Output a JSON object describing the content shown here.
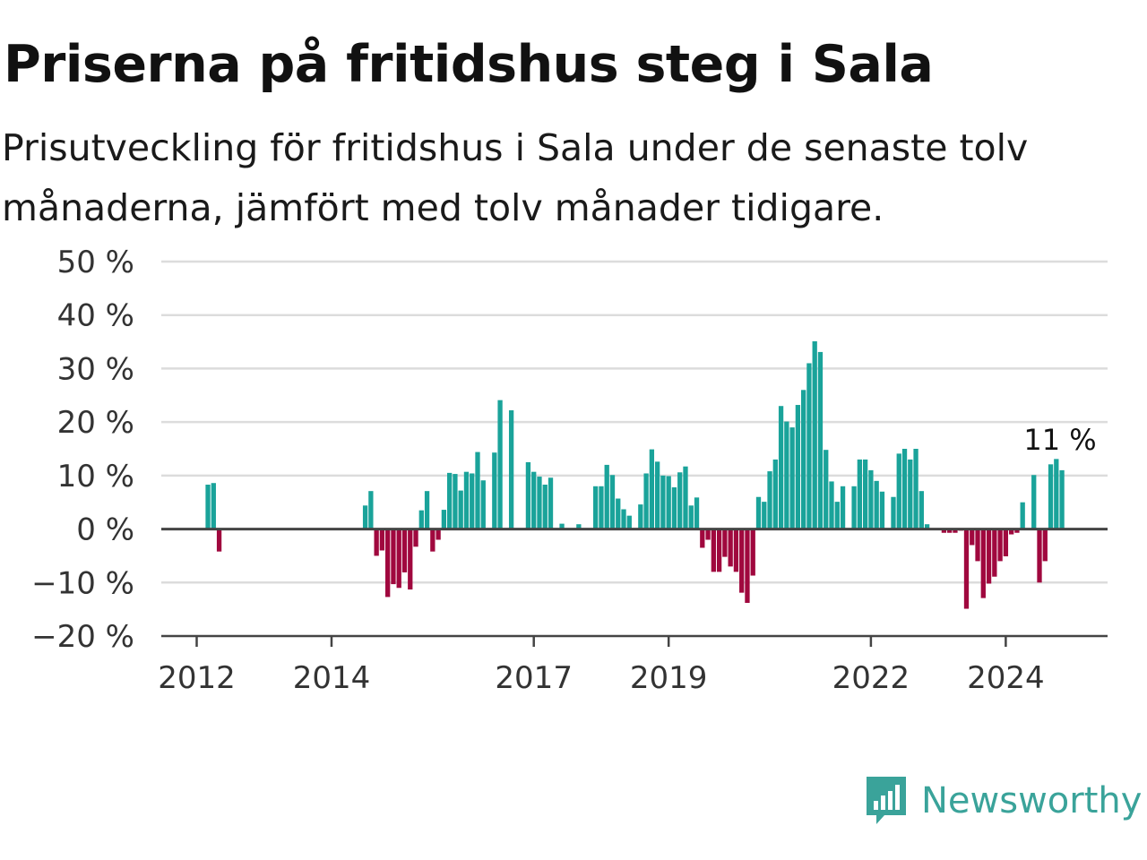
{
  "title": "Priserna på fritidshus steg i Sala",
  "subtitle": "Prisutveckling för fritidshus i Sala under de senaste tolv månaderna, jämfört med tolv månader tidigare.",
  "brand": {
    "name": "Newsworthy",
    "logo_icon": "newsworthy-bar-chart-icon"
  },
  "colors": {
    "positive": "#1aa39a",
    "negative": "#a0083e",
    "grid": "#dcdcdc",
    "axis": "#444444",
    "brand": "#3aa39a"
  },
  "chart_data": {
    "type": "bar",
    "ylabel": "",
    "xlabel": "",
    "ylim": [
      -20,
      50
    ],
    "y_ticks": [
      {
        "value": 50,
        "label": "50 %"
      },
      {
        "value": 40,
        "label": "40 %"
      },
      {
        "value": 30,
        "label": "30 %"
      },
      {
        "value": 20,
        "label": "20 %"
      },
      {
        "value": 10,
        "label": "10 %"
      },
      {
        "value": 0,
        "label": "0 %"
      },
      {
        "value": -10,
        "label": "−10 %"
      },
      {
        "value": -20,
        "label": "−20 %"
      }
    ],
    "x_ticks": [
      {
        "date": "2012-01",
        "label": "2012"
      },
      {
        "date": "2014-01",
        "label": "2014"
      },
      {
        "date": "2017-01",
        "label": "2017"
      },
      {
        "date": "2019-01",
        "label": "2019"
      },
      {
        "date": "2022-01",
        "label": "2022"
      },
      {
        "date": "2024-01",
        "label": "2024"
      }
    ],
    "grid": true,
    "last_value_label": "11 %",
    "bars": [
      {
        "date": "2012-03",
        "value": 8.3
      },
      {
        "date": "2012-04",
        "value": 8.6
      },
      {
        "date": "2012-05",
        "value": -4.2
      },
      {
        "date": "2014-07",
        "value": 4.4
      },
      {
        "date": "2014-08",
        "value": 7.1
      },
      {
        "date": "2014-09",
        "value": -5.0
      },
      {
        "date": "2014-10",
        "value": -4.0
      },
      {
        "date": "2014-11",
        "value": -12.7
      },
      {
        "date": "2014-12",
        "value": -10.3
      },
      {
        "date": "2015-01",
        "value": -11.0
      },
      {
        "date": "2015-02",
        "value": -8.1
      },
      {
        "date": "2015-03",
        "value": -11.3
      },
      {
        "date": "2015-04",
        "value": -3.3
      },
      {
        "date": "2015-05",
        "value": 3.5
      },
      {
        "date": "2015-06",
        "value": 7.1
      },
      {
        "date": "2015-07",
        "value": -4.2
      },
      {
        "date": "2015-08",
        "value": -2.0
      },
      {
        "date": "2015-09",
        "value": 3.6
      },
      {
        "date": "2015-10",
        "value": 10.5
      },
      {
        "date": "2015-11",
        "value": 10.3
      },
      {
        "date": "2015-12",
        "value": 7.2
      },
      {
        "date": "2016-01",
        "value": 10.7
      },
      {
        "date": "2016-02",
        "value": 10.4
      },
      {
        "date": "2016-03",
        "value": 14.4
      },
      {
        "date": "2016-04",
        "value": 9.1
      },
      {
        "date": "2016-06",
        "value": 14.3
      },
      {
        "date": "2016-07",
        "value": 24.1
      },
      {
        "date": "2016-09",
        "value": 22.2
      },
      {
        "date": "2016-12",
        "value": 12.5
      },
      {
        "date": "2017-01",
        "value": 10.7
      },
      {
        "date": "2017-02",
        "value": 9.8
      },
      {
        "date": "2017-03",
        "value": 8.3
      },
      {
        "date": "2017-04",
        "value": 9.6
      },
      {
        "date": "2017-06",
        "value": 1.0
      },
      {
        "date": "2017-09",
        "value": 0.9
      },
      {
        "date": "2017-12",
        "value": 8.0
      },
      {
        "date": "2018-01",
        "value": 8.0
      },
      {
        "date": "2018-02",
        "value": 12.0
      },
      {
        "date": "2018-03",
        "value": 10.1
      },
      {
        "date": "2018-04",
        "value": 5.7
      },
      {
        "date": "2018-05",
        "value": 3.7
      },
      {
        "date": "2018-06",
        "value": 2.5
      },
      {
        "date": "2018-08",
        "value": 4.6
      },
      {
        "date": "2018-09",
        "value": 10.4
      },
      {
        "date": "2018-10",
        "value": 14.9
      },
      {
        "date": "2018-11",
        "value": 12.6
      },
      {
        "date": "2018-12",
        "value": 10.0
      },
      {
        "date": "2019-01",
        "value": 9.9
      },
      {
        "date": "2019-02",
        "value": 7.8
      },
      {
        "date": "2019-03",
        "value": 10.6
      },
      {
        "date": "2019-04",
        "value": 11.7
      },
      {
        "date": "2019-05",
        "value": 4.4
      },
      {
        "date": "2019-06",
        "value": 5.9
      },
      {
        "date": "2019-07",
        "value": -3.5
      },
      {
        "date": "2019-08",
        "value": -2.0
      },
      {
        "date": "2019-09",
        "value": -8.0
      },
      {
        "date": "2019-10",
        "value": -8.0
      },
      {
        "date": "2019-11",
        "value": -5.2
      },
      {
        "date": "2019-12",
        "value": -7.0
      },
      {
        "date": "2020-01",
        "value": -8.0
      },
      {
        "date": "2020-02",
        "value": -11.9
      },
      {
        "date": "2020-03",
        "value": -13.8
      },
      {
        "date": "2020-04",
        "value": -8.7
      },
      {
        "date": "2020-05",
        "value": 6.0
      },
      {
        "date": "2020-06",
        "value": 5.1
      },
      {
        "date": "2020-07",
        "value": 10.8
      },
      {
        "date": "2020-08",
        "value": 13.0
      },
      {
        "date": "2020-09",
        "value": 23.0
      },
      {
        "date": "2020-10",
        "value": 20.1
      },
      {
        "date": "2020-11",
        "value": 19.0
      },
      {
        "date": "2020-12",
        "value": 23.2
      },
      {
        "date": "2021-01",
        "value": 26.0
      },
      {
        "date": "2021-02",
        "value": 31.0
      },
      {
        "date": "2021-03",
        "value": 35.1
      },
      {
        "date": "2021-04",
        "value": 33.1
      },
      {
        "date": "2021-05",
        "value": 14.8
      },
      {
        "date": "2021-06",
        "value": 8.9
      },
      {
        "date": "2021-07",
        "value": 5.1
      },
      {
        "date": "2021-08",
        "value": 8.0
      },
      {
        "date": "2021-10",
        "value": 8.0
      },
      {
        "date": "2021-11",
        "value": 13.0
      },
      {
        "date": "2021-12",
        "value": 13.0
      },
      {
        "date": "2022-01",
        "value": 11.0
      },
      {
        "date": "2022-02",
        "value": 9.0
      },
      {
        "date": "2022-03",
        "value": 7.0
      },
      {
        "date": "2022-05",
        "value": 6.0
      },
      {
        "date": "2022-06",
        "value": 14.1
      },
      {
        "date": "2022-07",
        "value": 15.0
      },
      {
        "date": "2022-08",
        "value": 13.0
      },
      {
        "date": "2022-09",
        "value": 15.0
      },
      {
        "date": "2022-10",
        "value": 7.1
      },
      {
        "date": "2022-11",
        "value": 0.9
      },
      {
        "date": "2023-02",
        "value": -0.7
      },
      {
        "date": "2023-03",
        "value": -0.7
      },
      {
        "date": "2023-04",
        "value": -0.7
      },
      {
        "date": "2023-05",
        "value": -0.3
      },
      {
        "date": "2023-06",
        "value": -14.9
      },
      {
        "date": "2023-07",
        "value": -3.0
      },
      {
        "date": "2023-08",
        "value": -6.0
      },
      {
        "date": "2023-09",
        "value": -12.9
      },
      {
        "date": "2023-10",
        "value": -10.2
      },
      {
        "date": "2023-11",
        "value": -8.9
      },
      {
        "date": "2023-12",
        "value": -6.0
      },
      {
        "date": "2024-01",
        "value": -5.1
      },
      {
        "date": "2024-02",
        "value": -1.0
      },
      {
        "date": "2024-03",
        "value": -0.7
      },
      {
        "date": "2024-04",
        "value": 5.0
      },
      {
        "date": "2024-06",
        "value": 10.1
      },
      {
        "date": "2024-07",
        "value": -10.0
      },
      {
        "date": "2024-08",
        "value": -6.0
      },
      {
        "date": "2024-09",
        "value": 12.1
      },
      {
        "date": "2024-10",
        "value": 13.1
      },
      {
        "date": "2024-11",
        "value": 11.0
      }
    ]
  }
}
